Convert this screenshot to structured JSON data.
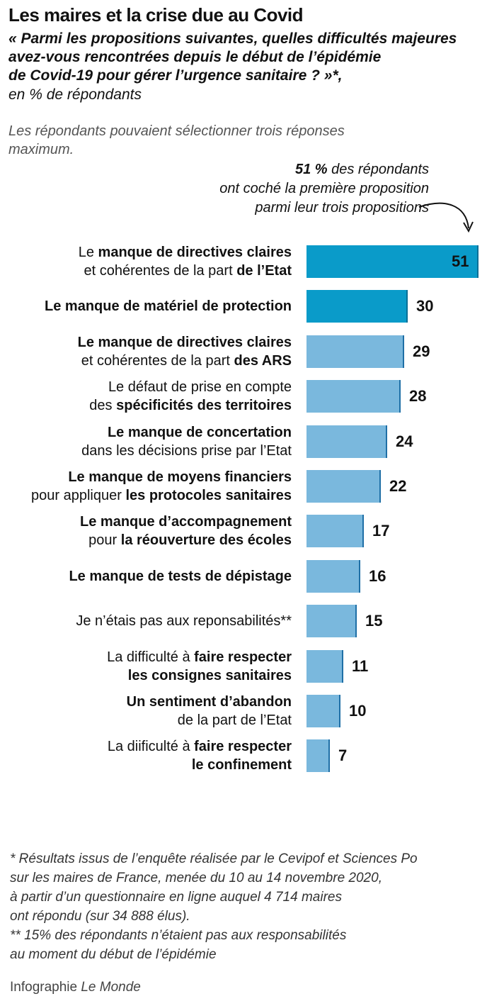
{
  "header": {
    "title": "Les maires et la crise due au Covid",
    "subtitle_lines": [
      "« Parmi les propositions suivantes, quelles difficultés majeures",
      "avez-vous rencontrées depuis le début de l’épidémie",
      "de Covid-19 pour gérer l’urgence sanitaire ? »*,"
    ],
    "unit": "en % de répondants",
    "note_lines": [
      "Les répondants pouvaient sélectionner trois réponses",
      "maximum."
    ]
  },
  "annotation": {
    "value": "51 %",
    "line1_rest": " des répondants",
    "line2": "ont coché la première proposition",
    "line3": "parmi leur trois propositions"
  },
  "chart_data": {
    "type": "bar",
    "orientation": "horizontal",
    "title": "Les maires et la crise due au Covid",
    "xlabel": "",
    "ylabel": "",
    "unit": "% de répondants",
    "xlim": [
      0,
      51
    ],
    "categories": [
      "Le manque de directives claires et cohérentes de la part de l’Etat",
      "Le manque de matériel de protection",
      "Le manque de directives claires et cohérentes de la part des ARS",
      "Le défaut de prise en compte des spécificités des territoires",
      "Le manque de concertation dans les décisions prise par l’Etat",
      "Le manque de moyens financiers pour appliquer les protocoles sanitaires",
      "Le manque d’accompagnement pour la réouverture des écoles",
      "Le manque de tests de dépistage",
      "Je n’étais pas aux reponsabilités**",
      "La difficulté à faire respecter les consignes sanitaires",
      "Un sentiment d’abandon de la part de l’Etat",
      "La diificulté à faire respecter le confinement"
    ],
    "values": [
      51,
      30,
      29,
      28,
      24,
      22,
      17,
      16,
      15,
      11,
      10,
      7
    ],
    "value_labels": [
      "51",
      "30",
      "29",
      "28",
      "24",
      "22",
      "17",
      "16",
      "15",
      "11",
      "10",
      "7"
    ],
    "label_lines": [
      [
        [
          {
            "t": "Le ",
            "b": false
          },
          {
            "t": "manque de directives claires",
            "b": true
          }
        ],
        [
          {
            "t": "et cohérentes de la part ",
            "b": false
          },
          {
            "t": "de l’Etat",
            "b": true
          }
        ]
      ],
      [
        [
          {
            "t": "Le manque de matériel de protection",
            "b": true
          }
        ]
      ],
      [
        [
          {
            "t": "Le manque de directives claires",
            "b": true
          }
        ],
        [
          {
            "t": "et cohérentes de la part ",
            "b": false
          },
          {
            "t": "des ARS",
            "b": true
          }
        ]
      ],
      [
        [
          {
            "t": "Le défaut de prise en compte",
            "b": false
          }
        ],
        [
          {
            "t": "des ",
            "b": false
          },
          {
            "t": "spécificités des territoires",
            "b": true
          }
        ]
      ],
      [
        [
          {
            "t": "Le manque de concertation",
            "b": true
          }
        ],
        [
          {
            "t": "dans les décisions prise par l’Etat",
            "b": false
          }
        ]
      ],
      [
        [
          {
            "t": "Le manque de moyens financiers",
            "b": true
          }
        ],
        [
          {
            "t": "pour appliquer ",
            "b": false
          },
          {
            "t": "les protocoles sanitaires",
            "b": true
          }
        ]
      ],
      [
        [
          {
            "t": "Le manque d’accompagnement",
            "b": true
          }
        ],
        [
          {
            "t": "pour ",
            "b": false
          },
          {
            "t": "la réouverture des écoles",
            "b": true
          }
        ]
      ],
      [
        [
          {
            "t": "Le manque de tests de dépistage",
            "b": true
          }
        ]
      ],
      [
        [
          {
            "t": "Je n’étais pas aux reponsabilités**",
            "b": false
          }
        ]
      ],
      [
        [
          {
            "t": "La difficulté à ",
            "b": false
          },
          {
            "t": "faire respecter",
            "b": true
          }
        ],
        [
          {
            "t": "les consignes sanitaires",
            "b": true
          }
        ]
      ],
      [
        [
          {
            "t": "Un sentiment d’abandon",
            "b": true
          }
        ],
        [
          {
            "t": "de la part de l’Etat",
            "b": false
          }
        ]
      ],
      [
        [
          {
            "t": "La diificulté à ",
            "b": false
          },
          {
            "t": "faire respecter",
            "b": true
          }
        ],
        [
          {
            "t": "le confinement",
            "b": true
          }
        ]
      ]
    ],
    "highlighted_count": 2,
    "colors": {
      "highlight": "#0a9bc9",
      "highlight_edge": "#0a6f96",
      "regular": "#7ab8dd",
      "regular_edge": "#1f6fa6"
    }
  },
  "footnote": {
    "lines": [
      "* Résultats issus de l’enquête réalisée par le Cevipof et Sciences Po",
      "sur les maires de France, menée du 10 au 14 novembre 2020,",
      "à partir d’un questionnaire en ligne auquel 4 714 maires",
      "ont répondu (sur 34 888 élus).",
      "** 15% des répondants n’étaient pas aux responsabilités",
      "au moment du début de l’épidémie"
    ]
  },
  "credit": {
    "prefix": "Infographie ",
    "source": "Le Monde"
  }
}
